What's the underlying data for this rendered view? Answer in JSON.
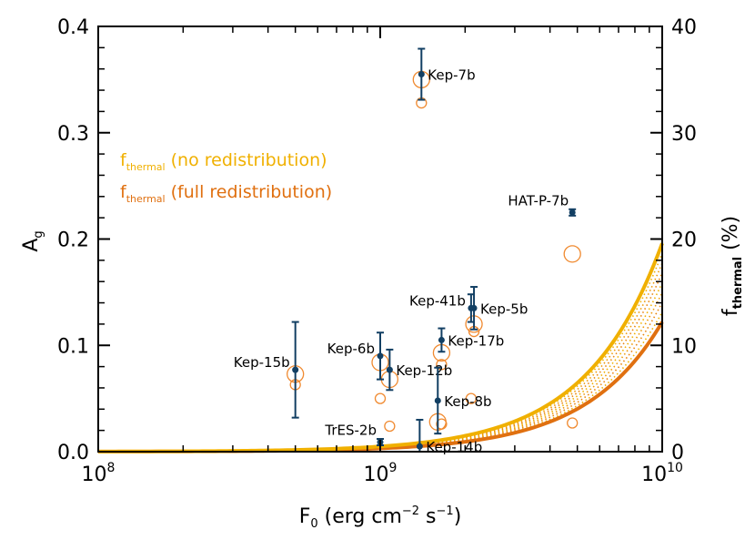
{
  "chart_data": {
    "type": "scatter",
    "xscale": "log",
    "xlim": [
      100000000,
      10000000000
    ],
    "ylim": [
      0,
      0.4
    ],
    "y2lim": [
      0,
      40
    ],
    "xlabel": {
      "base": "F",
      "sub": "0",
      "rest1": " (erg cm",
      "sup1": "−2",
      "rest2": " s",
      "sup2": "−1",
      "rest3": ")"
    },
    "ylabel": {
      "base": "A",
      "sub": "g"
    },
    "y2label": {
      "base": "f",
      "sub": "thermal",
      "rest": " (%)"
    },
    "x_ticks": [
      {
        "value": 100000000,
        "base": "10",
        "exp": "8"
      },
      {
        "value": 1000000000,
        "base": "10",
        "exp": "9"
      },
      {
        "value": 10000000000,
        "base": "10",
        "exp": "10"
      }
    ],
    "y_ticks": [
      {
        "value": 0.0,
        "label": "0.0"
      },
      {
        "value": 0.1,
        "label": "0.1"
      },
      {
        "value": 0.2,
        "label": "0.2"
      },
      {
        "value": 0.3,
        "label": "0.3"
      },
      {
        "value": 0.4,
        "label": "0.4"
      }
    ],
    "y2_ticks": [
      {
        "value": 0,
        "label": "0"
      },
      {
        "value": 10,
        "label": "10"
      },
      {
        "value": 20,
        "label": "20"
      },
      {
        "value": 30,
        "label": "30"
      },
      {
        "value": 40,
        "label": "40"
      }
    ],
    "legend": {
      "placement": "upper-left",
      "entries": [
        {
          "base": "f",
          "sub": "thermal",
          "rest": " (no redistribution)",
          "color": "#f0b000"
        },
        {
          "base": "f",
          "sub": "thermal",
          "rest": " (full redistribution)",
          "color": "#e07010"
        }
      ]
    },
    "planets": [
      {
        "name": "Kep-7b",
        "F0": 1400000000,
        "Ag": 0.355,
        "err": 0.024,
        "label_pos": "right"
      },
      {
        "name": "HAT-P-7b",
        "F0": 4800000000,
        "Ag": 0.225,
        "err": 0.003,
        "label_pos": "above-left"
      },
      {
        "name": "Kep-41b",
        "F0": 2100000000,
        "Ag": 0.135,
        "err": 0.013,
        "label_pos": "left"
      },
      {
        "name": "Kep-5b",
        "F0": 2150000000,
        "Ag": 0.135,
        "err": 0.02,
        "label_pos": "right"
      },
      {
        "name": "Kep-17b",
        "F0": 1650000000,
        "Ag": 0.105,
        "err": 0.011,
        "label_pos": "right"
      },
      {
        "name": "Kep-6b",
        "F0": 1000000000,
        "Ag": 0.09,
        "err": 0.022,
        "label_pos": "left"
      },
      {
        "name": "Kep-12b",
        "F0": 1080000000,
        "Ag": 0.077,
        "err": 0.019,
        "label_pos": "right"
      },
      {
        "name": "Kep-15b",
        "F0": 500000000,
        "Ag": 0.077,
        "err": 0.045,
        "label_pos": "left"
      },
      {
        "name": "Kep-8b",
        "F0": 1600000000,
        "Ag": 0.048,
        "err": 0.031,
        "label_pos": "right"
      },
      {
        "name": "TrES-2b",
        "F0": 1000000000,
        "Ag": 0.009,
        "err": 0.003,
        "label_pos": "above-left"
      },
      {
        "name": "Kep-14b",
        "F0": 1380000000,
        "Ag": 0.005,
        "err": 0.025,
        "label_pos": "right"
      }
    ],
    "thermal_markers": [
      {
        "F0": 1400000000,
        "Ag": 0.35,
        "size": "large"
      },
      {
        "F0": 1400000000,
        "Ag": 0.328,
        "size": "small"
      },
      {
        "F0": 4800000000,
        "Ag": 0.186,
        "size": "large"
      },
      {
        "F0": 4800000000,
        "Ag": 0.027,
        "size": "small"
      },
      {
        "F0": 2150000000,
        "Ag": 0.12,
        "size": "large"
      },
      {
        "F0": 2150000000,
        "Ag": 0.113,
        "size": "small"
      },
      {
        "F0": 1650000000,
        "Ag": 0.093,
        "size": "large"
      },
      {
        "F0": 1650000000,
        "Ag": 0.082,
        "size": "small"
      },
      {
        "F0": 1000000000,
        "Ag": 0.084,
        "size": "large"
      },
      {
        "F0": 1000000000,
        "Ag": 0.05,
        "size": "small"
      },
      {
        "F0": 1080000000,
        "Ag": 0.068,
        "size": "large"
      },
      {
        "F0": 1080000000,
        "Ag": 0.024,
        "size": "small"
      },
      {
        "F0": 500000000,
        "Ag": 0.073,
        "size": "large"
      },
      {
        "F0": 500000000,
        "Ag": 0.063,
        "size": "small"
      },
      {
        "F0": 1600000000,
        "Ag": 0.028,
        "size": "large"
      },
      {
        "F0": 2100000000,
        "Ag": 0.05,
        "size": "small"
      },
      {
        "F0": 1650000000,
        "Ag": 0.026,
        "size": "small"
      }
    ],
    "curves": {
      "no_redistribution": {
        "color": "#f0b000",
        "ag_at_1e10": 0.196,
        "exponent": 1.6
      },
      "full_redistribution": {
        "color": "#e07010",
        "ag_at_1e10": 0.122,
        "exponent": 1.6
      },
      "intermediate_fractions": [
        0.875,
        0.75,
        0.625,
        0.5,
        0.375,
        0.25,
        0.125
      ],
      "intermediate_colors": [
        "#f0b000",
        "#ee9a08",
        "#e9850e"
      ]
    },
    "colors": {
      "points": "#123f63",
      "thermal_markers": "#f08a30",
      "axes": "#000000"
    }
  }
}
